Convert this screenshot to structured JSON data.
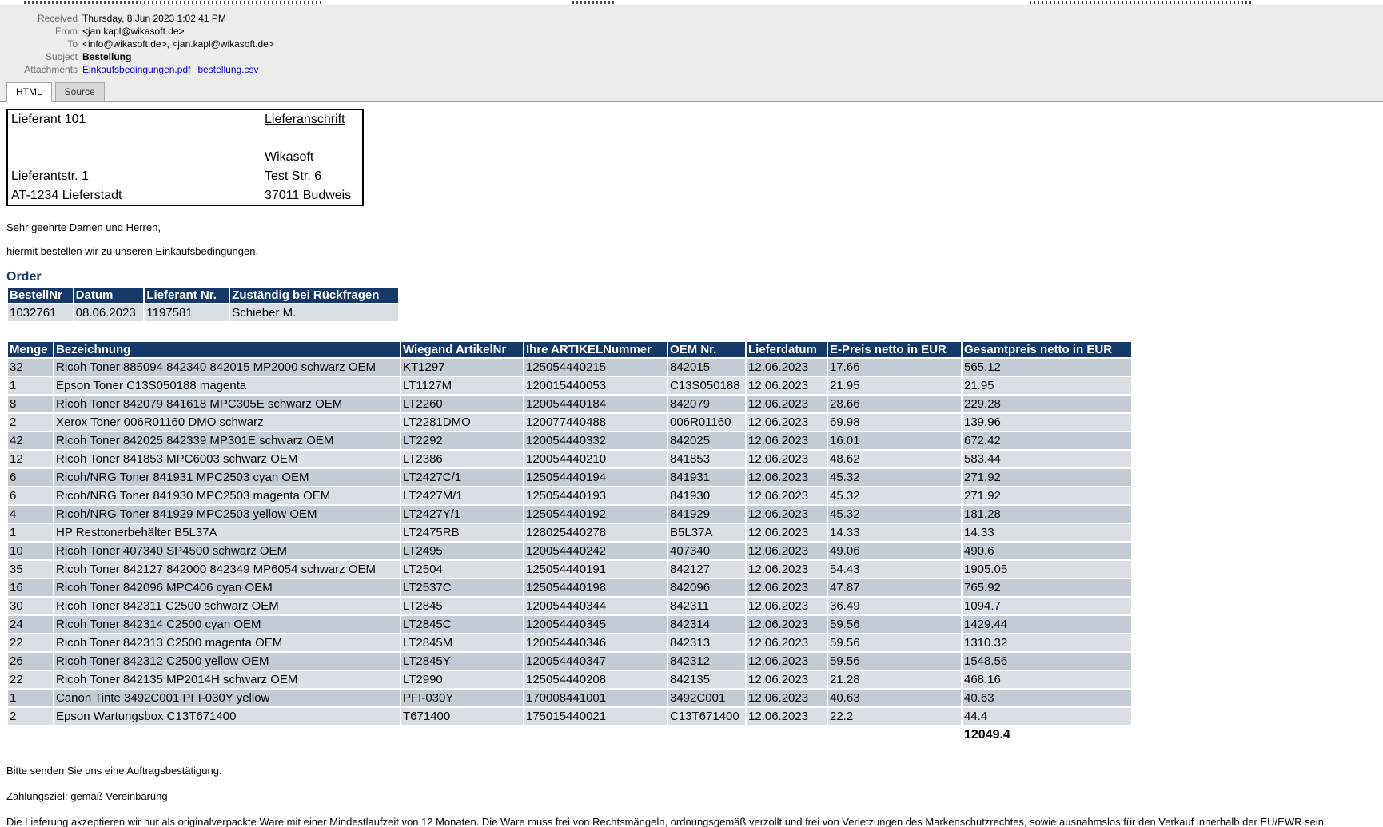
{
  "colors": {
    "table_header_navy": "#143968",
    "row_dark": "#c3ccd5",
    "row_light": "#d9dfe4",
    "order_row": "#d9dee3",
    "link_blue": "#0202dd",
    "header_area_gray": "#ececec"
  },
  "mail_header": {
    "fields": [
      {
        "label": "Received",
        "value": "Thursday, 8 Jun 2023 1:02:41 PM"
      },
      {
        "label": "From",
        "value": "<jan.kapl@wikasoft.de>"
      },
      {
        "label": "To",
        "value": "<info@wikasoft.de>, <jan.kapl@wikasoft.de>"
      },
      {
        "label": "Subject",
        "value": "Bestellung"
      }
    ],
    "attachments_label": "Attachments",
    "attachments": [
      {
        "name": "Einkaufsbedingungen.pdf"
      },
      {
        "name": "bestellung.csv"
      }
    ]
  },
  "tabs": [
    {
      "label": "HTML",
      "active": true
    },
    {
      "label": "Source",
      "active": false
    }
  ],
  "address": {
    "rows": [
      [
        "Lieferant 101",
        "Lieferanschrift"
      ],
      [
        "",
        ""
      ],
      [
        "",
        "Wikasoft"
      ],
      [
        "Lieferantstr. 1",
        "Test Str. 6"
      ],
      [
        "AT-1234 Lieferstadt",
        "37011 Budweis"
      ]
    ]
  },
  "body_text": {
    "greeting1": "Sehr geehrte Damen und Herren,",
    "greeting2": "hiermit bestellen wir zu unseren Einkaufsbedingungen."
  },
  "order": {
    "title": "Order",
    "headers": [
      "BestellNr",
      "Datum",
      "Lieferant Nr.",
      "Zuständig bei Rückfragen"
    ],
    "rows": [
      [
        "1032761",
        "08.06.2023",
        "1197581",
        "Schieber M."
      ]
    ]
  },
  "items": {
    "headers": [
      "Menge",
      "Bezeichnung",
      "Wiegand ArtikelNr",
      "Ihre ARTIKELNummer",
      "OEM Nr.",
      "Lieferdatum",
      "E-Preis netto in EUR",
      "Gesamtpreis netto in EUR"
    ],
    "rows": [
      [
        "32",
        "Ricoh Toner 885094 842340 842015 MP2000 schwarz OEM",
        "KT1297",
        "125054440215",
        "842015",
        "12.06.2023",
        "17.66",
        "565.12"
      ],
      [
        "1",
        "Epson Toner C13S050188 magenta",
        "LT1127M",
        "120015440053",
        "C13S050188",
        "12.06.2023",
        "21.95",
        "21.95"
      ],
      [
        "8",
        "Ricoh Toner 842079 841618 MPC305E schwarz OEM",
        "LT2260",
        "120054440184",
        "842079",
        "12.06.2023",
        "28.66",
        "229.28"
      ],
      [
        "2",
        "Xerox Toner 006R01160 DMO schwarz",
        "LT2281DMO",
        "120077440488",
        "006R01160",
        "12.06.2023",
        "69.98",
        "139.96"
      ],
      [
        "42",
        "Ricoh Toner 842025 842339 MP301E schwarz OEM",
        "LT2292",
        "120054440332",
        "842025",
        "12.06.2023",
        "16.01",
        "672.42"
      ],
      [
        "12",
        "Ricoh Toner 841853 MPC6003 schwarz OEM",
        "LT2386",
        "120054440210",
        "841853",
        "12.06.2023",
        "48.62",
        "583.44"
      ],
      [
        "6",
        "Ricoh/NRG Toner 841931 MPC2503 cyan OEM",
        "LT2427C/1",
        "125054440194",
        "841931",
        "12.06.2023",
        "45.32",
        "271.92"
      ],
      [
        "6",
        "Ricoh/NRG Toner 841930 MPC2503 magenta OEM",
        "LT2427M/1",
        "125054440193",
        "841930",
        "12.06.2023",
        "45.32",
        "271.92"
      ],
      [
        "4",
        "Ricoh/NRG Toner 841929 MPC2503 yellow OEM",
        "LT2427Y/1",
        "125054440192",
        "841929",
        "12.06.2023",
        "45.32",
        "181.28"
      ],
      [
        "1",
        "HP Resttonerbehälter B5L37A",
        "LT2475RB",
        "128025440278",
        "B5L37A",
        "12.06.2023",
        "14.33",
        "14.33"
      ],
      [
        "10",
        "Ricoh Toner 407340 SP4500 schwarz OEM",
        "LT2495",
        "120054440242",
        "407340",
        "12.06.2023",
        "49.06",
        "490.6"
      ],
      [
        "35",
        "Ricoh Toner 842127 842000 842349 MP6054 schwarz OEM",
        "LT2504",
        "125054440191",
        "842127",
        "12.06.2023",
        "54.43",
        "1905.05"
      ],
      [
        "16",
        "Ricoh Toner 842096 MPC406 cyan OEM",
        "LT2537C",
        "125054440198",
        "842096",
        "12.06.2023",
        "47.87",
        "765.92"
      ],
      [
        "30",
        "Ricoh Toner 842311 C2500 schwarz OEM",
        "LT2845",
        "120054440344",
        "842311",
        "12.06.2023",
        "36.49",
        "1094.7"
      ],
      [
        "24",
        "Ricoh Toner 842314 C2500 cyan OEM",
        "LT2845C",
        "120054440345",
        "842314",
        "12.06.2023",
        "59.56",
        "1429.44"
      ],
      [
        "22",
        "Ricoh Toner 842313 C2500 magenta OEM",
        "LT2845M",
        "120054440346",
        "842313",
        "12.06.2023",
        "59.56",
        "1310.32"
      ],
      [
        "26",
        "Ricoh Toner 842312 C2500 yellow OEM",
        "LT2845Y",
        "120054440347",
        "842312",
        "12.06.2023",
        "59.56",
        "1548.56"
      ],
      [
        "22",
        "Ricoh Toner 842135 MP2014H schwarz OEM",
        "LT2990",
        "125054440208",
        "842135",
        "12.06.2023",
        "21.28",
        "468.16"
      ],
      [
        "1",
        "Canon Tinte 3492C001 PFI-030Y yellow",
        "PFI-030Y",
        "170008441001",
        "3492C001",
        "12.06.2023",
        "40.63",
        "40.63"
      ],
      [
        "2",
        "Epson Wartungsbox C13T671400",
        "T671400",
        "175015440021",
        "C13T671400",
        "12.06.2023",
        "22.2",
        "44.4"
      ]
    ],
    "total": "12049.4"
  },
  "footer": {
    "line1": "Bitte senden Sie uns eine Auftragsbestätigung.",
    "line2": "Zahlungsziel: gemäß Vereinbarung",
    "line3": "Die Lieferung akzeptieren wir nur als originalverpackte Ware mit einer Mindestlaufzeit von 12 Monaten. Die Ware muss frei von Rechtsmängeln, ordnungsgemäß verzollt und frei von Verletzungen des Markenschutzrechtes, sowie ausnahmslos für den Verkauf innerhalb der EU/EWR sein."
  }
}
